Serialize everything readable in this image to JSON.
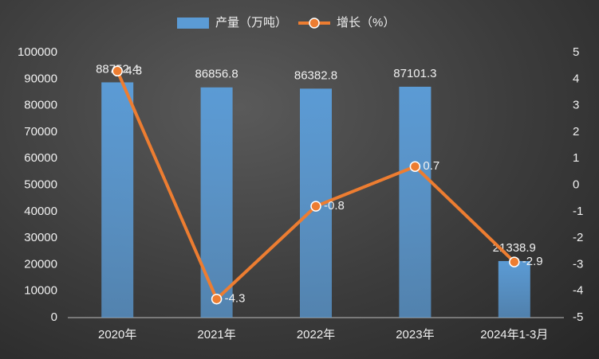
{
  "chart_data": {
    "type": "bar-line",
    "categories": [
      "2020年",
      "2021年",
      "2022年",
      "2023年",
      "2024年1-3月"
    ],
    "series": [
      {
        "name": "产量（万吨）",
        "type": "bar",
        "color": "#5b9bd5",
        "values": [
          88752.4,
          86856.8,
          86382.8,
          87101.3,
          21338.9
        ]
      },
      {
        "name": "增长（%）",
        "type": "line",
        "axis": "y2",
        "color": "#ed7d31",
        "values": [
          4.3,
          -4.3,
          -0.8,
          0.7,
          -2.9
        ]
      }
    ],
    "ylim": [
      0,
      100000
    ],
    "yticks": [
      0,
      10000,
      20000,
      30000,
      40000,
      50000,
      60000,
      70000,
      80000,
      90000,
      100000
    ],
    "y2lim": [
      -5,
      5
    ],
    "y2ticks": [
      -5,
      -4,
      -3,
      -2,
      -1,
      0,
      1,
      2,
      3,
      4,
      5
    ]
  }
}
